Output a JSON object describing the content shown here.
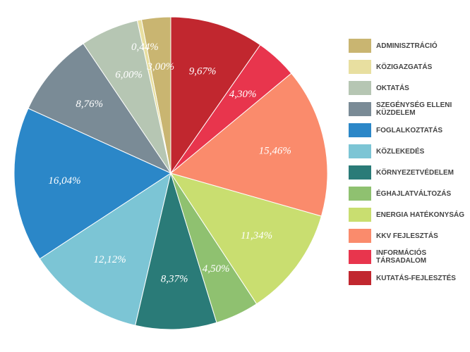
{
  "chart_data": {
    "type": "pie",
    "categories": [
      "ADMINISZTRÁCIÓ",
      "KÖZIGAZGATÁS",
      "OKTATÁS",
      "SZEGÉNYSÉG ELLENI KÜZDELEM",
      "FOGLALKOZTATÁS",
      "KÖZLEKEDÉS",
      "KÖRNYEZETVÉDELEM",
      "ÉGHAJLATVÁLTOZÁS",
      "ENERGIA HATÉKONYSÁG",
      "KKV FEJLESZTÁS",
      "INFORMÁCIÓS TÁRSADALOM",
      "KUTATÁS-FEJLESZTÉS"
    ],
    "values": [
      3.0,
      0.44,
      6.0,
      8.76,
      16.04,
      12.12,
      8.37,
      4.5,
      11.34,
      15.46,
      4.3,
      9.67
    ],
    "value_labels": [
      "3,00%",
      "0,44%",
      "6,00%",
      "8,76%",
      "16,04%",
      "12,12%",
      "8,37%",
      "4,50%",
      "11,34%",
      "15,46%",
      "4,30%",
      "9,67%"
    ],
    "colors": [
      "#c9b571",
      "#e8dfa0",
      "#b6c6b3",
      "#7a8b96",
      "#2b87c8",
      "#7cc5d5",
      "#2a7b78",
      "#8fc170",
      "#c9de70",
      "#fa8b6c",
      "#e8354d",
      "#c1272f"
    ]
  }
}
